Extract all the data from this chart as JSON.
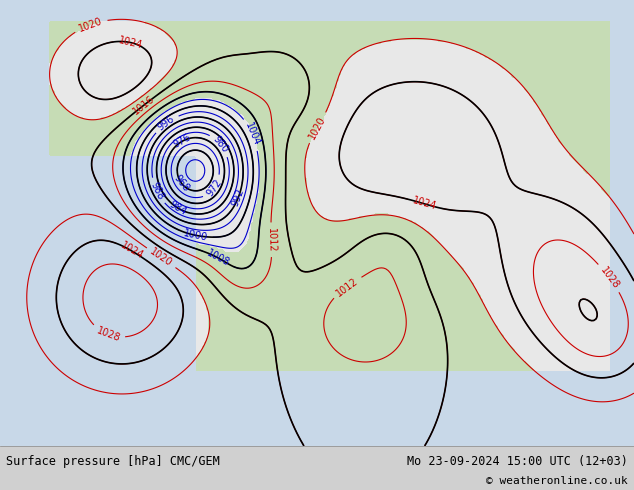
{
  "title_left": "Surface pressure [hPa] CMC/GEM",
  "title_right": "Mo 23-09-2024 15:00 UTC (12+03)",
  "copyright": "© weatheronline.co.uk",
  "bg_color": "#d0d0d0",
  "map_bg_color": "#c8c8c8",
  "land_color": "#e8e8e8",
  "ocean_color": "#c8d8e8",
  "green_land_color": "#b8d8a0",
  "footer_bg": "#e8e8e8",
  "footer_text_color": "#000000",
  "contour_blue_color": "#0000cc",
  "contour_red_color": "#cc0000",
  "contour_black_color": "#000000",
  "label_fontsize": 7,
  "footer_fontsize": 8.5
}
